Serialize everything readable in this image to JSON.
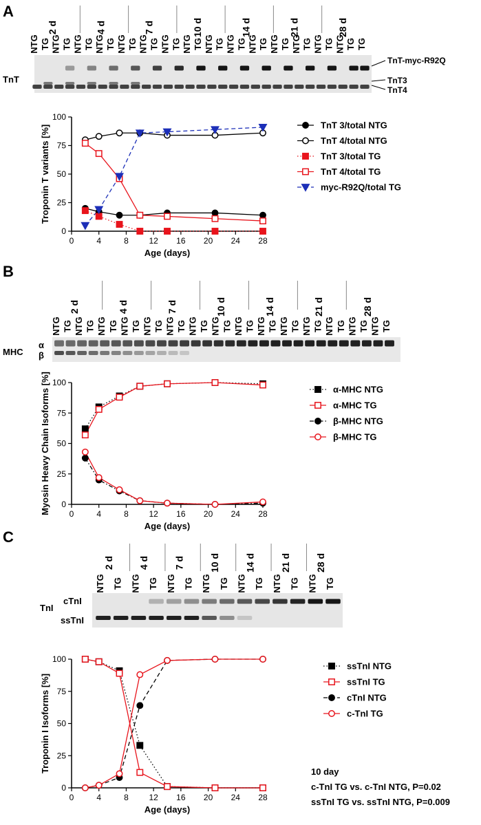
{
  "panel_labels": [
    "A",
    "B",
    "C"
  ],
  "blots": [
    {
      "name": "tnt",
      "row_label": "TnT",
      "day_labels": [
        "2 d",
        "4 d",
        "7 d",
        "10 d",
        "14 d",
        "21 d",
        "28 d"
      ],
      "lane_labels": [
        "NTG",
        "TG",
        "NTG",
        "TG",
        "NTG",
        "TG",
        "NTG",
        "TG",
        "NTG",
        "TG",
        "NTG",
        "TG",
        "NTG",
        "TG",
        "NTG",
        "TG",
        "NTG",
        "TG",
        "NTG",
        "TG",
        "NTG",
        "TG",
        "NTG",
        "TG",
        "NTG",
        "TG",
        "NTG",
        "TG",
        "NTG",
        "TG",
        "TG"
      ],
      "band_labels": [
        "TnT-myc-R92Q",
        "TnT3",
        "TnT4"
      ]
    },
    {
      "name": "mhc",
      "row_label": "MHC",
      "day_labels": [
        "2 d",
        "4 d",
        "7 d",
        "10 d",
        "14 d",
        "21 d",
        "28 d"
      ],
      "lane_labels": [
        "NTG",
        "TG",
        "NTG",
        "TG",
        "NTG",
        "TG",
        "NTG",
        "TG",
        "NTG",
        "TG",
        "NTG",
        "TG",
        "NTG",
        "TG",
        "NTG",
        "TG",
        "NTG",
        "TG",
        "NTG",
        "TG",
        "NTG",
        "TG",
        "NTG",
        "TG",
        "NTG",
        "TG",
        "NTG",
        "TG",
        "NTG",
        "TG"
      ],
      "band_labels": [
        "α",
        "β"
      ]
    },
    {
      "name": "tni",
      "row_label": "TnI",
      "day_labels": [
        "2 d",
        "4 d",
        "7 d",
        "10 d",
        "14 d",
        "21 d",
        "28 d"
      ],
      "lane_labels": [
        "NTG",
        "TG",
        "NTG",
        "TG",
        "NTG",
        "TG",
        "NTG",
        "TG",
        "NTG",
        "TG",
        "NTG",
        "TG",
        "NTG",
        "TG"
      ],
      "band_labels": [
        "cTnI",
        "ssTnI"
      ]
    }
  ],
  "chart_data": [
    {
      "name": "tnt-chart",
      "type": "line",
      "title": "",
      "xlabel": "Age (days)",
      "ylabel": "Troponin T variants [%]",
      "xlim": [
        0,
        28
      ],
      "ylim": [
        0,
        100
      ],
      "xticks": [
        0,
        4,
        8,
        12,
        16,
        20,
        24,
        28
      ],
      "yticks": [
        0,
        25,
        50,
        75,
        100
      ],
      "legend_position": "right",
      "series": [
        {
          "name": "TnT 3/total NTG",
          "color": "#000000",
          "marker": "circle",
          "filled": true,
          "dash": "solid",
          "x": [
            2,
            4,
            7,
            10,
            14,
            21,
            28
          ],
          "y": [
            20,
            17,
            14,
            14,
            16,
            16,
            14
          ]
        },
        {
          "name": "TnT 4/total NTG",
          "color": "#000000",
          "marker": "circle",
          "filled": false,
          "dash": "solid",
          "x": [
            2,
            4,
            7,
            10,
            14,
            21,
            28
          ],
          "y": [
            80,
            83,
            86,
            86,
            84,
            84,
            86
          ]
        },
        {
          "name": "TnT 3/total TG",
          "color": "#e8141c",
          "marker": "square",
          "filled": true,
          "dash": "dotted",
          "x": [
            2,
            4,
            7,
            10,
            14,
            21,
            28
          ],
          "y": [
            18,
            13,
            6,
            0,
            0,
            0,
            0
          ]
        },
        {
          "name": "TnT 4/total TG",
          "color": "#e8141c",
          "marker": "square",
          "filled": false,
          "dash": "solid",
          "x": [
            2,
            4,
            7,
            10,
            14,
            21,
            28
          ],
          "y": [
            77,
            68,
            46,
            14,
            13,
            11,
            9
          ]
        },
        {
          "name": "myc-R92Q/total TG",
          "color": "#1c2fb8",
          "marker": "triangle-down",
          "filled": true,
          "dash": "dashed",
          "x": [
            2,
            4,
            7,
            10,
            14,
            21,
            28
          ],
          "y": [
            5,
            19,
            48,
            86,
            87,
            89,
            91
          ]
        }
      ]
    },
    {
      "name": "mhc-chart",
      "type": "line",
      "title": "",
      "xlabel": "Age (days)",
      "ylabel": "Myosin Heavy Chain Isoforms [%]",
      "xlim": [
        0,
        28
      ],
      "ylim": [
        0,
        100
      ],
      "xticks": [
        0,
        4,
        8,
        12,
        16,
        20,
        24,
        28
      ],
      "yticks": [
        0,
        25,
        50,
        75,
        100
      ],
      "legend_position": "right",
      "series": [
        {
          "name": "α-MHC NTG",
          "color": "#000000",
          "marker": "square",
          "filled": true,
          "dash": "dotted",
          "x": [
            2,
            4,
            7,
            10,
            14,
            21,
            28
          ],
          "y": [
            62,
            80,
            89,
            97,
            99,
            100,
            99
          ]
        },
        {
          "name": "α-MHC TG",
          "color": "#e8141c",
          "marker": "square",
          "filled": false,
          "dash": "solid",
          "x": [
            2,
            4,
            7,
            10,
            14,
            21,
            28
          ],
          "y": [
            57,
            78,
            88,
            97,
            99,
            100,
            98
          ]
        },
        {
          "name": "β-MHC NTG",
          "color": "#000000",
          "marker": "circle",
          "filled": true,
          "dash": "dashdot",
          "x": [
            2,
            4,
            7,
            10,
            14,
            21,
            28
          ],
          "y": [
            38,
            20,
            11,
            3,
            1,
            0,
            1
          ]
        },
        {
          "name": "β-MHC TG",
          "color": "#e8141c",
          "marker": "circle",
          "filled": false,
          "dash": "solid",
          "x": [
            2,
            4,
            7,
            10,
            14,
            21,
            28
          ],
          "y": [
            43,
            22,
            12,
            3,
            1,
            0,
            2
          ]
        }
      ]
    },
    {
      "name": "tni-chart",
      "type": "line",
      "title": "",
      "xlabel": "Age (days)",
      "ylabel": "Troponin I Isoforms [%]",
      "xlim": [
        0,
        28
      ],
      "ylim": [
        0,
        100
      ],
      "xticks": [
        0,
        4,
        8,
        12,
        16,
        20,
        24,
        28
      ],
      "yticks": [
        0,
        25,
        50,
        75,
        100
      ],
      "legend_position": "right",
      "series": [
        {
          "name": "ssTnI NTG",
          "color": "#000000",
          "marker": "square",
          "filled": true,
          "dash": "dotted",
          "x": [
            2,
            4,
            7,
            10,
            14,
            21,
            28
          ],
          "y": [
            100,
            98,
            91,
            33,
            1,
            0,
            0
          ]
        },
        {
          "name": "ssTnI TG",
          "color": "#e8141c",
          "marker": "square",
          "filled": false,
          "dash": "solid",
          "x": [
            2,
            4,
            7,
            10,
            14,
            21,
            28
          ],
          "y": [
            100,
            98,
            89,
            12,
            1,
            0,
            0
          ]
        },
        {
          "name": "cTnI NTG",
          "color": "#000000",
          "marker": "circle",
          "filled": true,
          "dash": "dashed",
          "x": [
            2,
            4,
            7,
            10,
            14,
            21,
            28
          ],
          "y": [
            0,
            2,
            8,
            64,
            99,
            100,
            100
          ]
        },
        {
          "name": "c-TnI TG",
          "color": "#e8141c",
          "marker": "circle",
          "filled": false,
          "dash": "solid",
          "x": [
            2,
            4,
            7,
            10,
            14,
            21,
            28
          ],
          "y": [
            0,
            2,
            11,
            88,
            99,
            100,
            100
          ]
        }
      ],
      "annotations": [
        "10 day",
        "c-TnI TG vs. c-TnI NTG, P=0.02",
        "ssTnI TG vs. ssTnI NTG, P=0.009"
      ]
    }
  ]
}
